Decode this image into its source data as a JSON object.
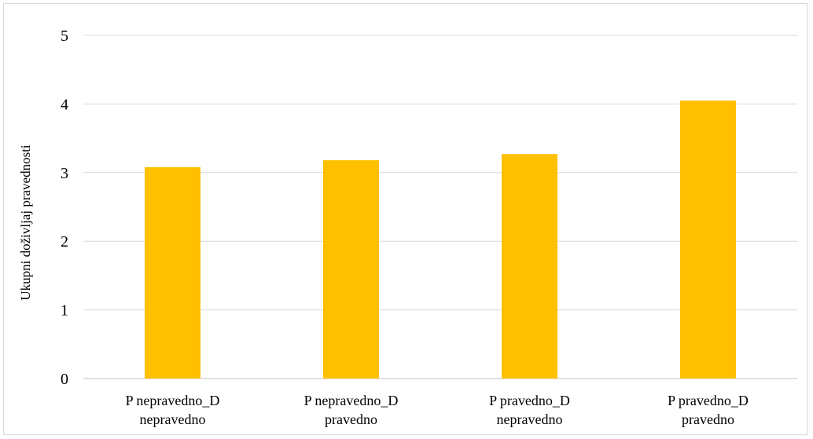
{
  "colors": {
    "bar": "#FFC000",
    "gridline": "#d9d9d9",
    "axis_line": "#bfbfbf",
    "border": "#d9d9d9"
  },
  "chart_data": {
    "type": "bar",
    "title": "",
    "xlabel": "",
    "ylabel": "Ukupni doživljaj pravednosti",
    "categories": [
      [
        "P nepravedno_D",
        "nepravedno"
      ],
      [
        "P nepravedno_D",
        "pravedno"
      ],
      [
        "P pravedno_D",
        "nepravedno"
      ],
      [
        "P pravedno_D",
        "pravedno"
      ]
    ],
    "values": [
      3.08,
      3.18,
      3.27,
      4.05
    ],
    "ylim": [
      0,
      5
    ],
    "yticks": [
      0,
      1,
      2,
      3,
      4,
      5
    ],
    "grid": true,
    "legend": "none"
  }
}
